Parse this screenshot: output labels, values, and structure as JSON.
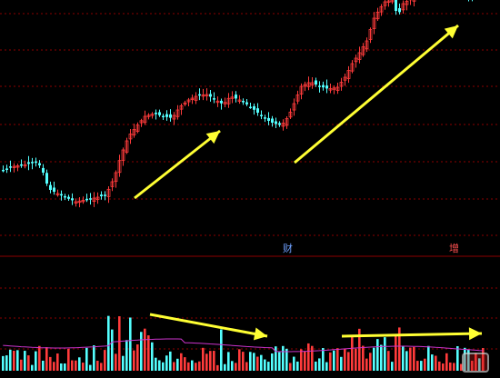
{
  "markers": {
    "cai": "财",
    "zeng": "增"
  },
  "colors": {
    "background": "#000000",
    "grid": "#8b0000",
    "up": "#ff3b3b",
    "down": "#54ffff",
    "volume_avg_line": "#cc33cc",
    "arrow": "#ffff33"
  },
  "watermark": {
    "logo": "stock-logo-icon"
  }
}
